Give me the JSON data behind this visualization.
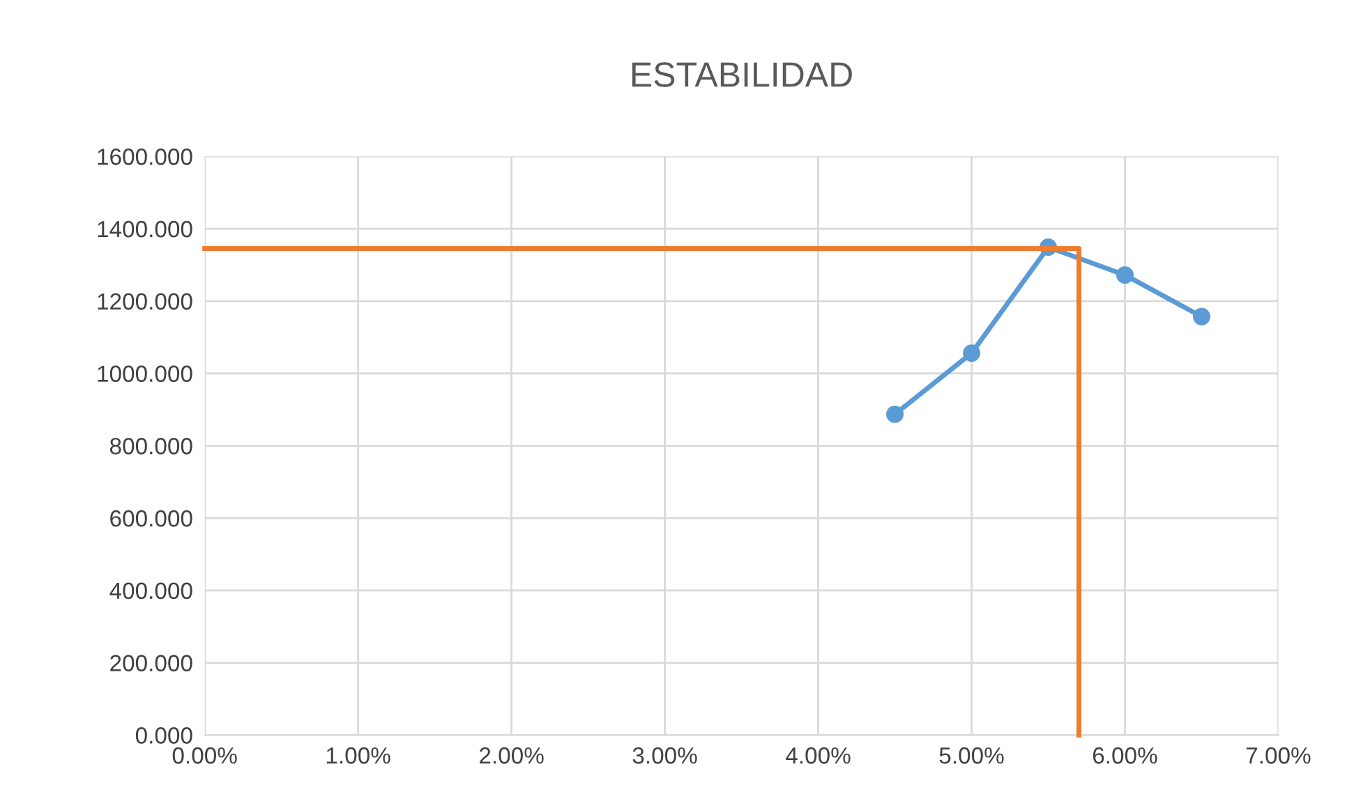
{
  "chart_data": {
    "type": "line",
    "title": "ESTABILIDAD",
    "series": [
      {
        "color": "#5b9bd5",
        "marker": "circle",
        "x": [
          0.045,
          0.05,
          0.055,
          0.06,
          0.065
        ],
        "values": [
          887,
          1056,
          1349,
          1272,
          1157
        ]
      },
      {
        "color": "#ed7d31",
        "marker": "none",
        "x": [
          0,
          0.057,
          0.057
        ],
        "values": [
          1345,
          1345,
          0
        ]
      }
    ],
    "xlim": [
      0,
      0.07
    ],
    "xticks": [
      {
        "value": 0,
        "label": "0.00%"
      },
      {
        "value": 0.01,
        "label": "1.00%"
      },
      {
        "value": 0.02,
        "label": "2.00%"
      },
      {
        "value": 0.03,
        "label": "3.00%"
      },
      {
        "value": 0.04,
        "label": "4.00%"
      },
      {
        "value": 0.05,
        "label": "5.00%"
      },
      {
        "value": 0.06,
        "label": "6.00%"
      },
      {
        "value": 0.07,
        "label": "7.00%"
      }
    ],
    "ylim": [
      0,
      1600
    ],
    "yticks": [
      {
        "value": 0,
        "label": "0.000"
      },
      {
        "value": 200,
        "label": "200.000"
      },
      {
        "value": 400,
        "label": "400.000"
      },
      {
        "value": 600,
        "label": "600.000"
      },
      {
        "value": 800,
        "label": "800.000"
      },
      {
        "value": 1000,
        "label": "1000.000"
      },
      {
        "value": 1200,
        "label": "1200.000"
      },
      {
        "value": 1400,
        "label": "1400.000"
      },
      {
        "value": 1600,
        "label": "1600.000"
      }
    ],
    "grid": true
  }
}
